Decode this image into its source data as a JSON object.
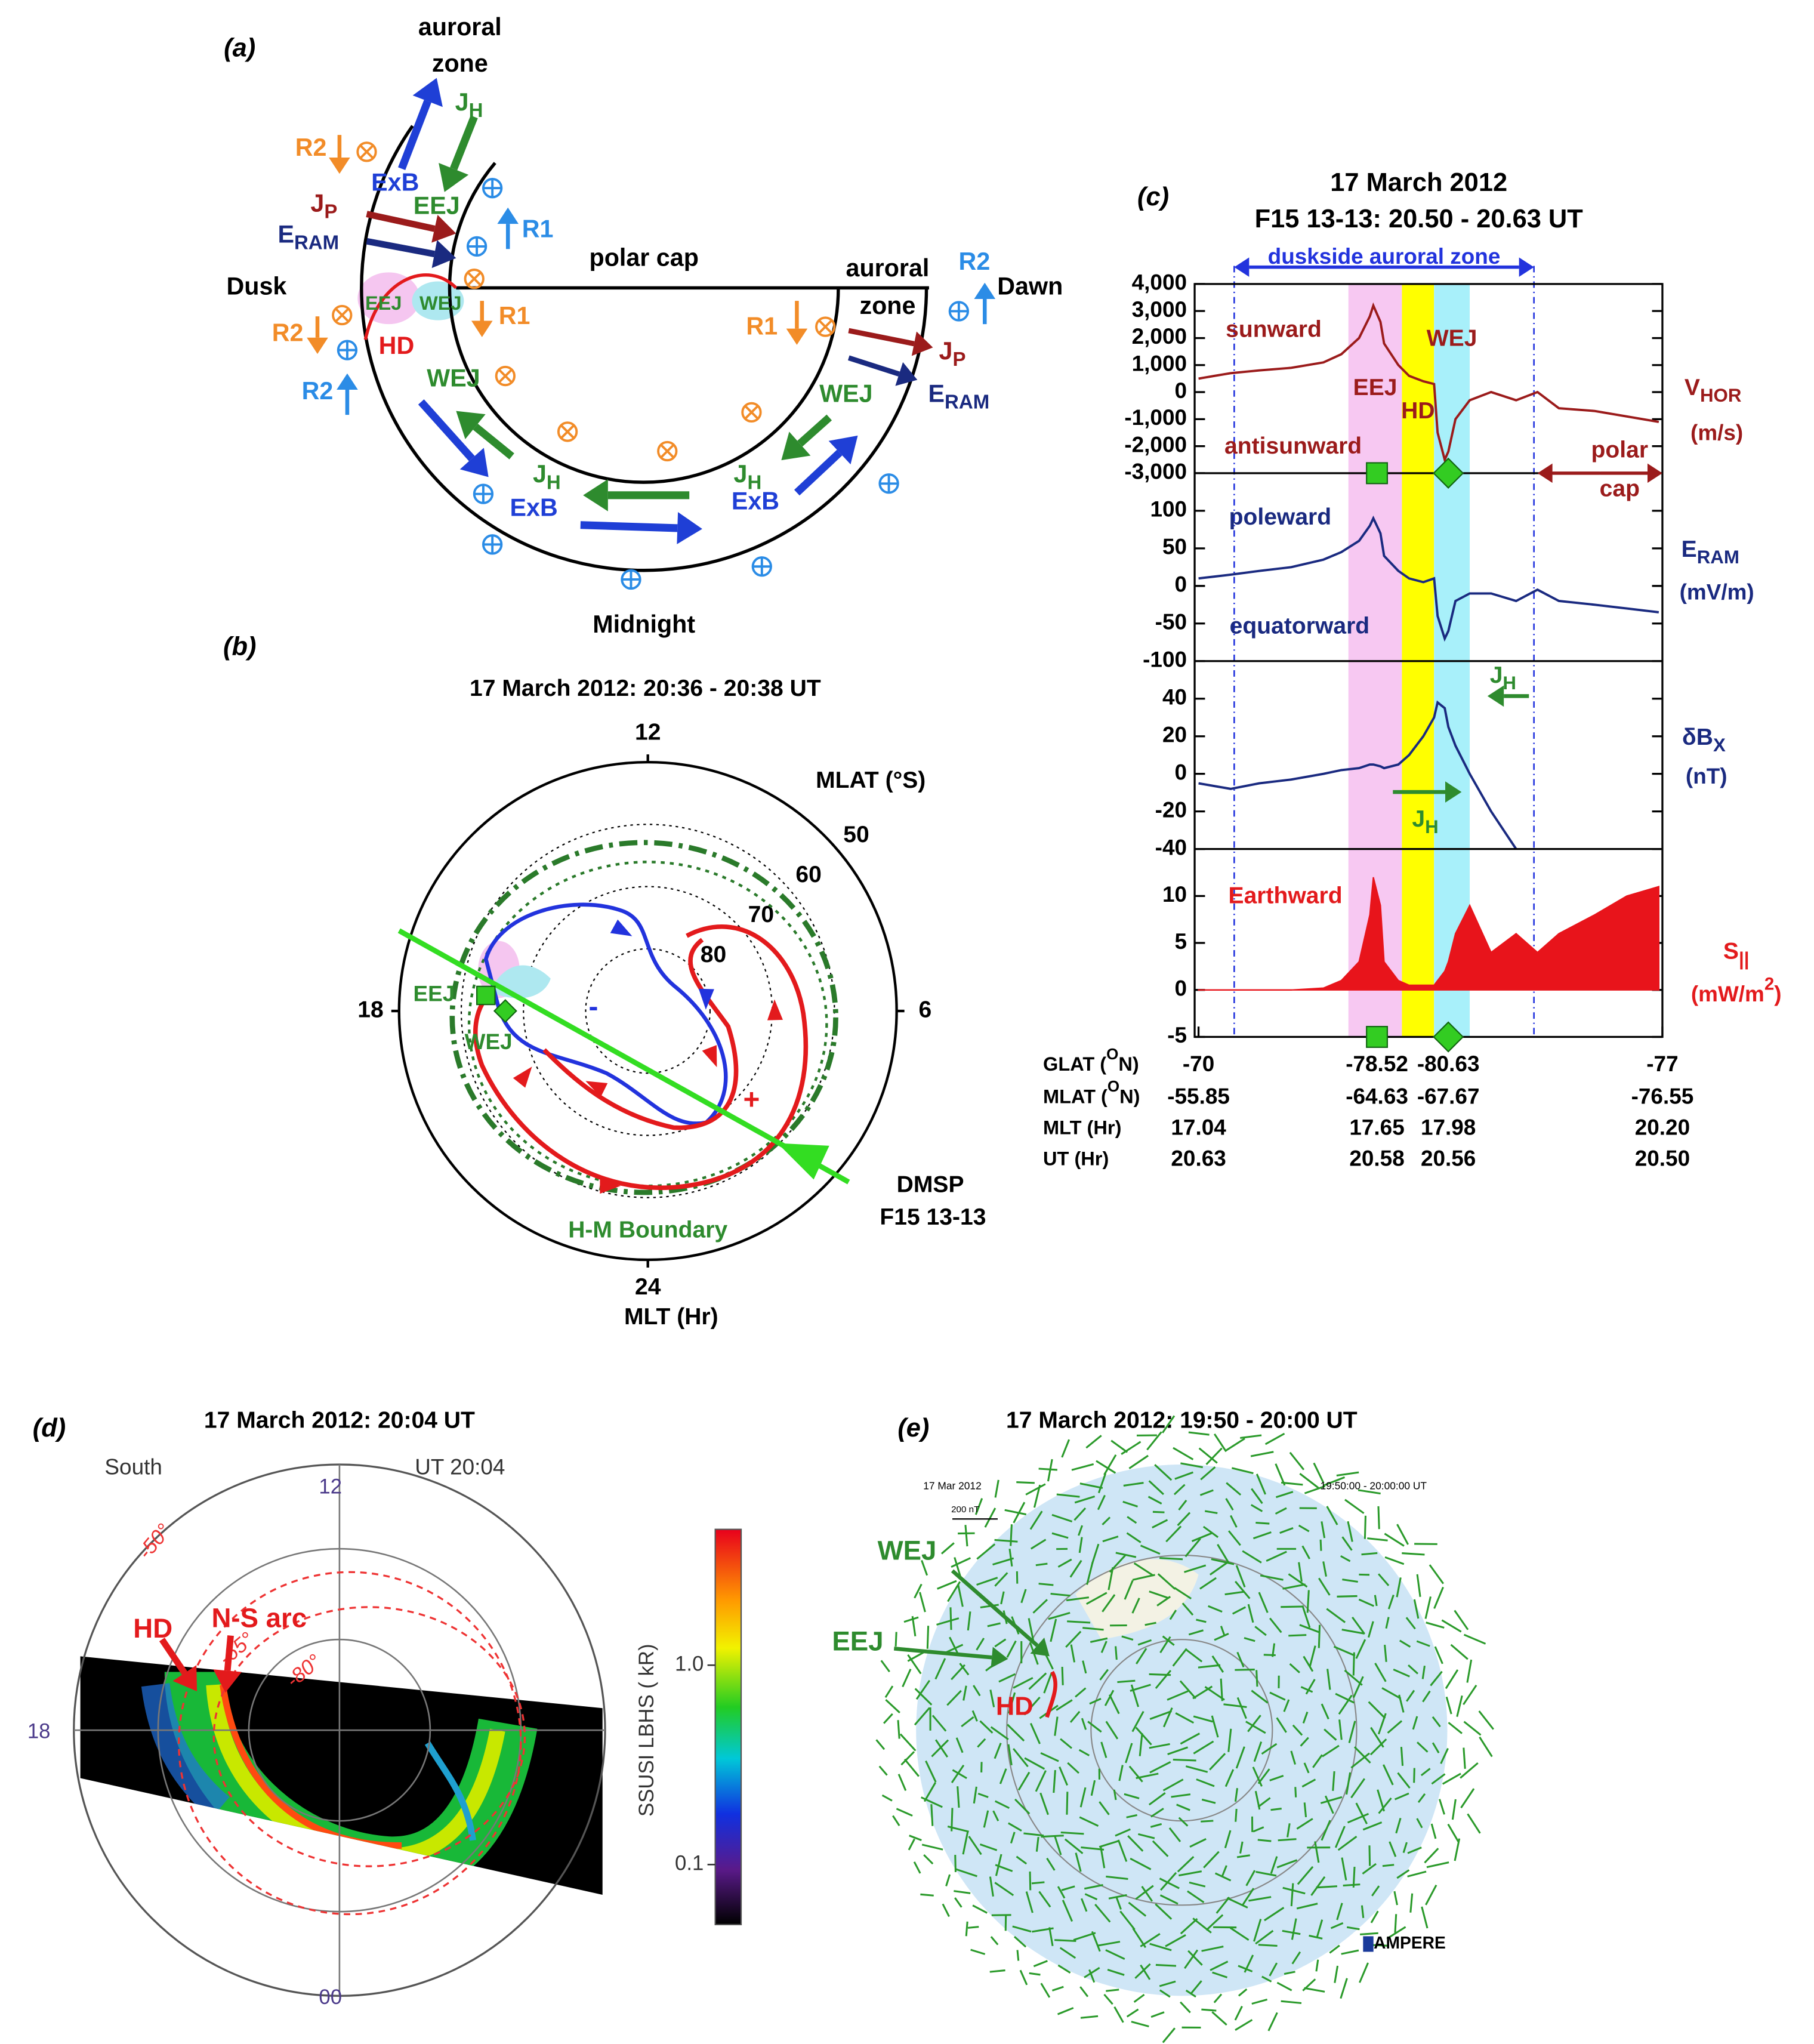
{
  "panel_a": {
    "label": "(a)",
    "labels": [
      "auroral",
      "zone",
      [
        "J",
        "H"
      ],
      "R2",
      "ExB",
      "EEJ",
      "R1",
      [
        "J",
        "P"
      ],
      [
        "E",
        "RAM"
      ],
      "polar cap",
      "Dusk",
      "EEJ",
      "WEJ",
      "R1",
      "HD",
      "R2",
      "R2",
      "auroral",
      "zone",
      "R2",
      "Dawn",
      "R1",
      [
        "J",
        "P"
      ],
      [
        "E",
        "RAM"
      ],
      "WEJ",
      "WEJ",
      [
        "J",
        "H"
      ],
      [
        "J",
        "H"
      ],
      "ExB",
      "ExB",
      "Midnight"
    ]
  },
  "panel_b": {
    "label": "(b)",
    "title": "17 March 2012: 20:36 - 20:38 UT",
    "mlat_label": "MLAT (°S)",
    "mlat_ticks": [
      50,
      60,
      70,
      80
    ],
    "mlt_label": "MLT (Hr)",
    "mlt_ticks": [
      12,
      18,
      6,
      24
    ],
    "labels": [
      "EEJ",
      "WEJ",
      "-",
      "+",
      "H-M Boundary",
      "DMSP",
      "F15 13-13"
    ]
  },
  "chart_data": {
    "type": "line",
    "label": "(c)",
    "title": [
      "17 March 2012",
      "F15 13-13: 20.50 - 20.63 UT"
    ],
    "zone": {
      "label": "duskside auroral zone",
      "range": [
        20.62,
        20.536
      ]
    },
    "polar_cap": {
      "label": [
        "polar",
        "cap"
      ],
      "start": 20.535
    },
    "regions": [
      {
        "label": "EEJ",
        "range": [
          20.588,
          20.573
        ],
        "color": "#f7c8f2"
      },
      {
        "label": "HD",
        "range": [
          20.573,
          20.564
        ],
        "color": "#ffff00"
      },
      {
        "label": "WEJ",
        "range": [
          20.564,
          20.554
        ],
        "color": "#a8f0fa"
      }
    ],
    "xlim": [
      20.63,
      20.5
    ],
    "x": [
      20.63,
      20.621,
      20.613,
      20.604,
      20.595,
      20.59,
      20.585,
      20.582,
      20.581,
      20.579,
      20.578,
      20.574,
      20.571,
      20.567,
      20.564,
      20.563,
      20.561,
      20.56,
      20.558,
      20.554,
      20.548,
      20.541,
      20.535,
      20.529,
      20.519,
      20.51,
      20.501
    ],
    "xlabel": "UT (Hr)",
    "xticks": [
      20.63,
      20.58,
      20.56,
      {
        "value": 20.5,
        "label": "20.50"
      }
    ],
    "xrows": [
      {
        "label": [
          "GLAT (",
          "O",
          "N)"
        ],
        "values": [
          -70,
          -78.52,
          -80.63,
          -77
        ]
      },
      {
        "label": [
          "MLAT (",
          "O",
          "N)"
        ],
        "values": [
          -55.85,
          -64.63,
          -67.67,
          -76.55
        ]
      },
      {
        "label": "MLT (Hr)",
        "values": [
          17.04,
          17.65,
          17.98,
          {
            "value": 20.2,
            "label": "20.20"
          }
        ]
      }
    ],
    "panels": [
      {
        "type": "line",
        "ylabel": [
          "V",
          "HOR"
        ],
        "yunit": "(m/s)",
        "color": "#9b1b1b",
        "annotations": [
          "sunward",
          "antisunward"
        ],
        "ylim": [
          -3000,
          4000
        ],
        "yticks": [
          {
            "value": 4000,
            "label": "4,000"
          },
          {
            "value": 3000,
            "label": "3,000"
          },
          {
            "value": 2000,
            "label": "2,000"
          },
          {
            "value": 1000,
            "label": "1,000"
          },
          0,
          {
            "value": -1000,
            "label": "-1,000"
          },
          {
            "value": -2000,
            "label": "-2,000"
          },
          {
            "value": -3000,
            "label": "-3,000"
          }
        ],
        "values": [
          500,
          700,
          800,
          900,
          1100,
          1400,
          2000,
          2800,
          3200,
          2600,
          1800,
          1000,
          600,
          400,
          300,
          -1500,
          -2500,
          -2200,
          -1000,
          -300,
          0,
          -300,
          0,
          -600,
          -700,
          -900,
          -1100
        ]
      },
      {
        "type": "line",
        "ylabel": [
          "E",
          "RAM"
        ],
        "yunit": "(mV/m)",
        "color": "#1a2a80",
        "annotations": [
          "poleward",
          "equatorward"
        ],
        "ylim": [
          -100,
          150
        ],
        "yticks": [
          100,
          50,
          0,
          -50,
          -100
        ],
        "values": [
          10,
          15,
          20,
          25,
          35,
          45,
          60,
          80,
          90,
          70,
          40,
          20,
          10,
          5,
          10,
          -40,
          -70,
          -60,
          -20,
          -10,
          -10,
          -20,
          -5,
          -20,
          -25,
          -30,
          -35
        ]
      },
      {
        "type": "line",
        "ylabel": [
          "δB",
          "X"
        ],
        "yunit": "(nT)",
        "color": "#1a2a80",
        "annotations": [
          [
            "J",
            "H"
          ],
          [
            "J",
            "H"
          ]
        ],
        "ylim": [
          -40,
          60
        ],
        "yticks": [
          40,
          20,
          0,
          -20,
          -40
        ],
        "values": [
          -5,
          -8,
          -5,
          -3,
          0,
          2,
          3,
          5,
          5,
          4,
          3,
          5,
          10,
          20,
          30,
          38,
          35,
          25,
          15,
          0,
          -20,
          -40,
          null,
          null,
          null,
          null,
          null
        ]
      },
      {
        "type": "area",
        "ylabel": [
          "S",
          "||"
        ],
        "yunit": [
          "(mW/m",
          "2",
          ")"
        ],
        "color": "#e8141b",
        "annotations": [
          "Earthward"
        ],
        "ylim": [
          -5,
          15
        ],
        "yticks": [
          10,
          5,
          0,
          -5
        ],
        "values": [
          0,
          0,
          0,
          0,
          0.2,
          1,
          3,
          8,
          12,
          9,
          3,
          1,
          0.5,
          0.5,
          0.5,
          1,
          2,
          3,
          6,
          9,
          4,
          6,
          4,
          6,
          8,
          10,
          11
        ]
      }
    ]
  },
  "panel_d": {
    "label": "(d)",
    "title": "17 March 2012: 20:04 UT",
    "labels": [
      "South",
      "UT 20:04",
      "12",
      "-50°",
      "HD",
      "N-S arc",
      "-65°",
      "-80°",
      "18",
      "00"
    ],
    "colorbar": {
      "title": "SSUSI LBHS ( kR)",
      "scale": "log",
      "lim": [
        0.05,
        4.8
      ],
      "ticks": [
        {
          "value": 1,
          "label": "1.0"
        },
        0.1
      ]
    }
  },
  "panel_e": {
    "label": "(e)",
    "title": "17 March 2012: 19:50 - 20:00 UT",
    "labels": [
      "17 Mar 2012",
      "19:50:00 - 20:00:00 UT",
      "200 nT",
      "WEJ",
      "EEJ",
      "HD",
      "AMPERE"
    ]
  }
}
